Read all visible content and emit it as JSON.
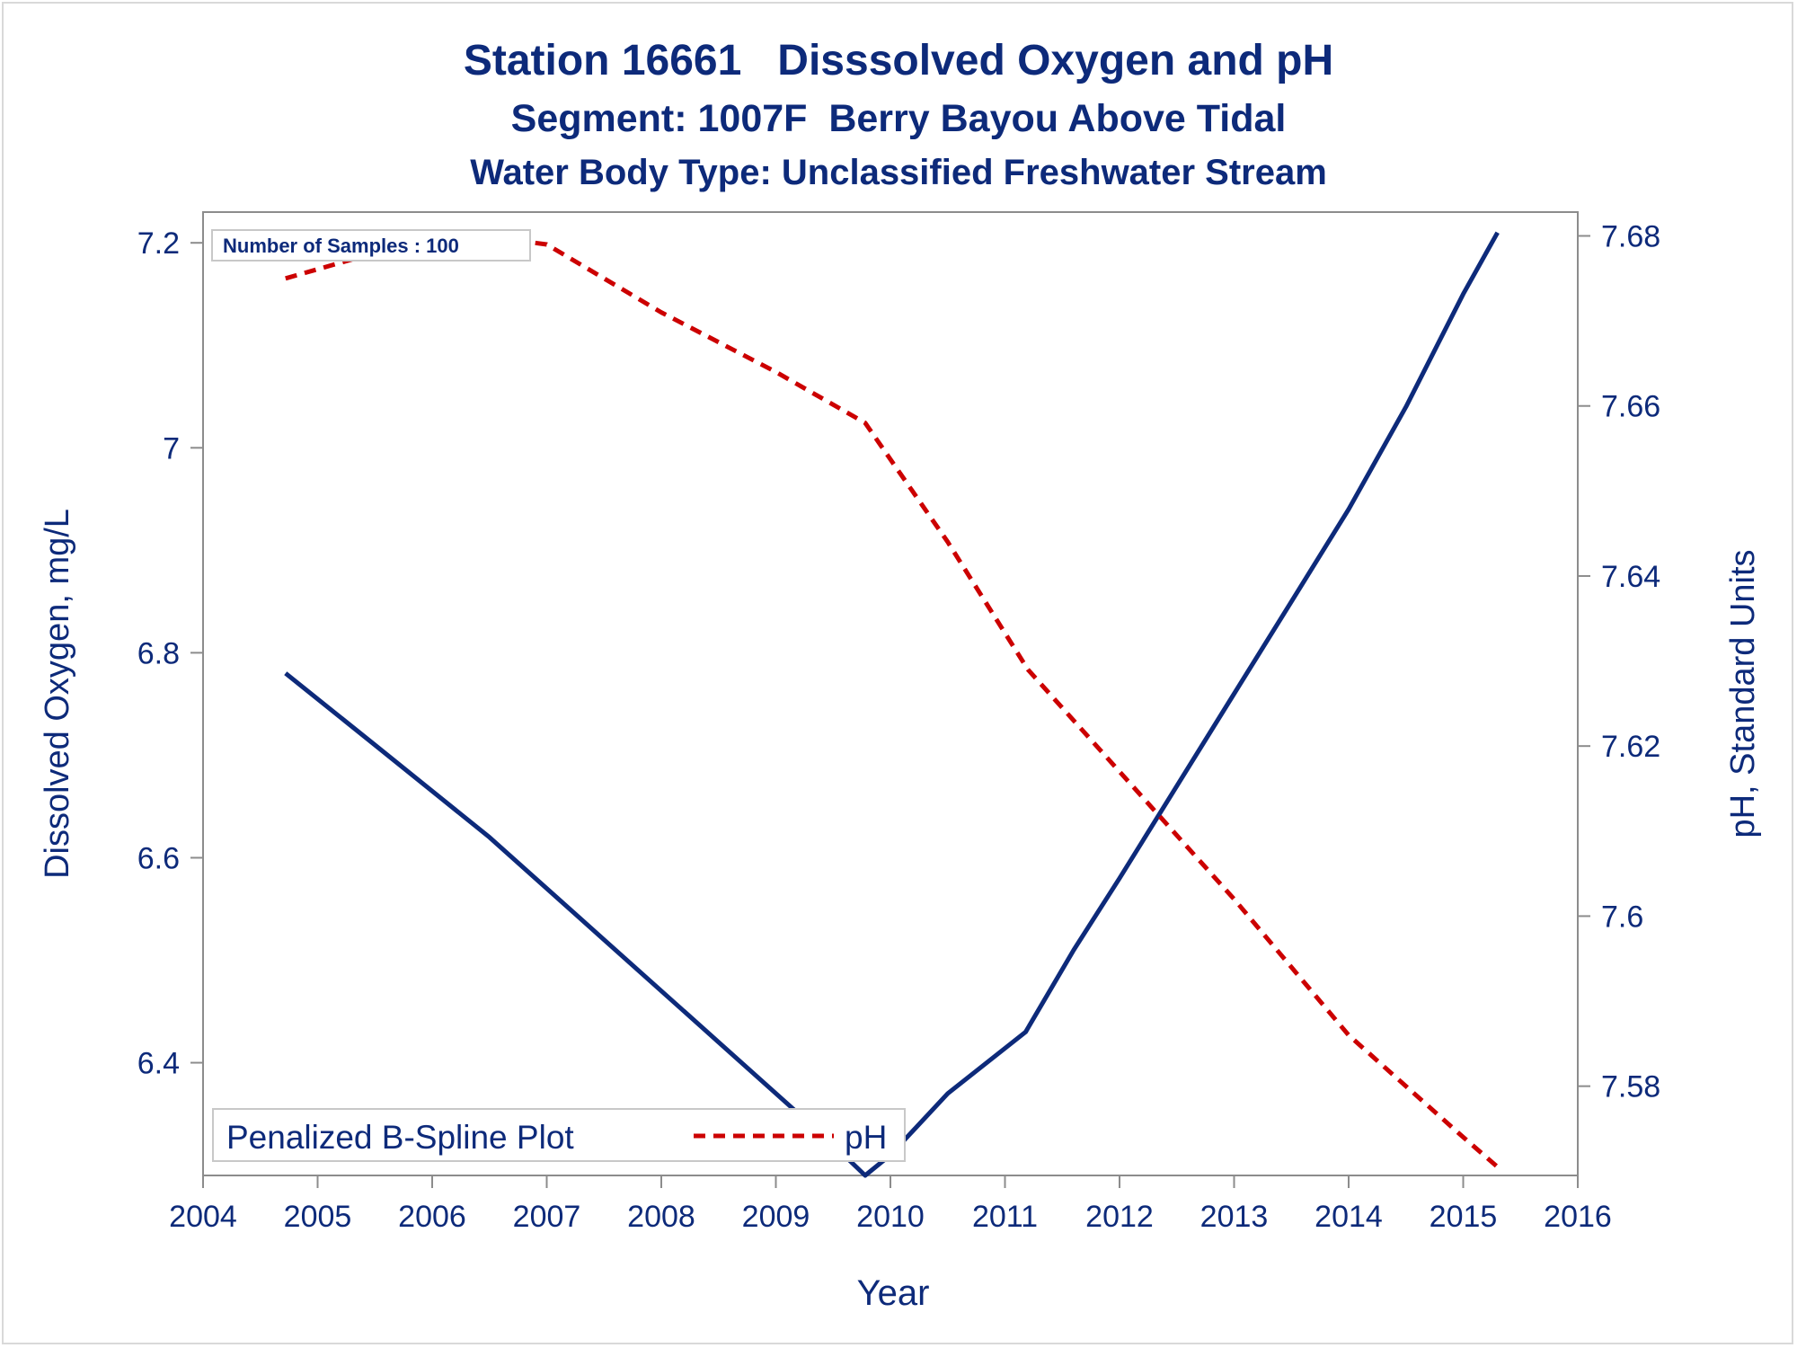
{
  "title": "Station 16661   Disssolved Oxygen and pH",
  "subtitle": "Segment: 1007F  Berry Bayou Above Tidal",
  "subtitle2": "Water Body Type: Unclassified Freshwater Stream",
  "samples_label": "Number of Samples : 100",
  "legend": {
    "label": "Penalized B-Spline Plot",
    "series_name": "pH"
  },
  "colors": {
    "do_line": "#0d2a7a",
    "ph_line": "#cc0000",
    "axis": "#8c8c8c",
    "text": "#0d2a7a"
  },
  "chart_data": {
    "type": "line",
    "xlabel": "Year",
    "ylabel": "Dissolved Oxygen, mg/L",
    "y2label": "pH, Standard Units",
    "xlim": [
      2004,
      2016
    ],
    "ylim": [
      6.29,
      7.23
    ],
    "y2lim": [
      7.5695,
      7.6828
    ],
    "x_ticks": [
      2004,
      2005,
      2006,
      2007,
      2008,
      2009,
      2010,
      2011,
      2012,
      2013,
      2014,
      2015,
      2016
    ],
    "y_ticks": [
      "6.4",
      "6.6",
      "6.8",
      "7",
      "7.2"
    ],
    "y2_ticks": [
      "7.58",
      "7.6",
      "7.62",
      "7.64",
      "7.66",
      "7.68"
    ],
    "grid": false,
    "legend_position": "bottom-left",
    "series": [
      {
        "axis": "left",
        "style": "solid",
        "x": [
          2004.72,
          2005.5,
          2006.5,
          2007.5,
          2008.5,
          2009.5,
          2009.78,
          2010.0,
          2010.5,
          2011.18,
          2011.6,
          2012.0,
          2012.5,
          2013.0,
          2013.5,
          2014.0,
          2014.5,
          2015.0,
          2015.3
        ],
        "values": [
          6.78,
          6.71,
          6.62,
          6.52,
          6.42,
          6.32,
          6.29,
          6.31,
          6.37,
          6.43,
          6.51,
          6.58,
          6.67,
          6.76,
          6.85,
          6.94,
          7.04,
          7.15,
          7.21
        ]
      },
      {
        "name": "pH",
        "axis": "right",
        "style": "dashed",
        "x": [
          2004.72,
          2005.5,
          2006.15,
          2007.0,
          2008.0,
          2009.0,
          2009.78,
          2010.5,
          2011.2,
          2012.0,
          2013.0,
          2014.0,
          2015.0,
          2015.3
        ],
        "values": [
          7.675,
          7.678,
          7.6805,
          7.679,
          7.671,
          7.664,
          7.658,
          7.644,
          7.629,
          7.617,
          7.602,
          7.586,
          7.574,
          7.5705
        ]
      }
    ]
  }
}
